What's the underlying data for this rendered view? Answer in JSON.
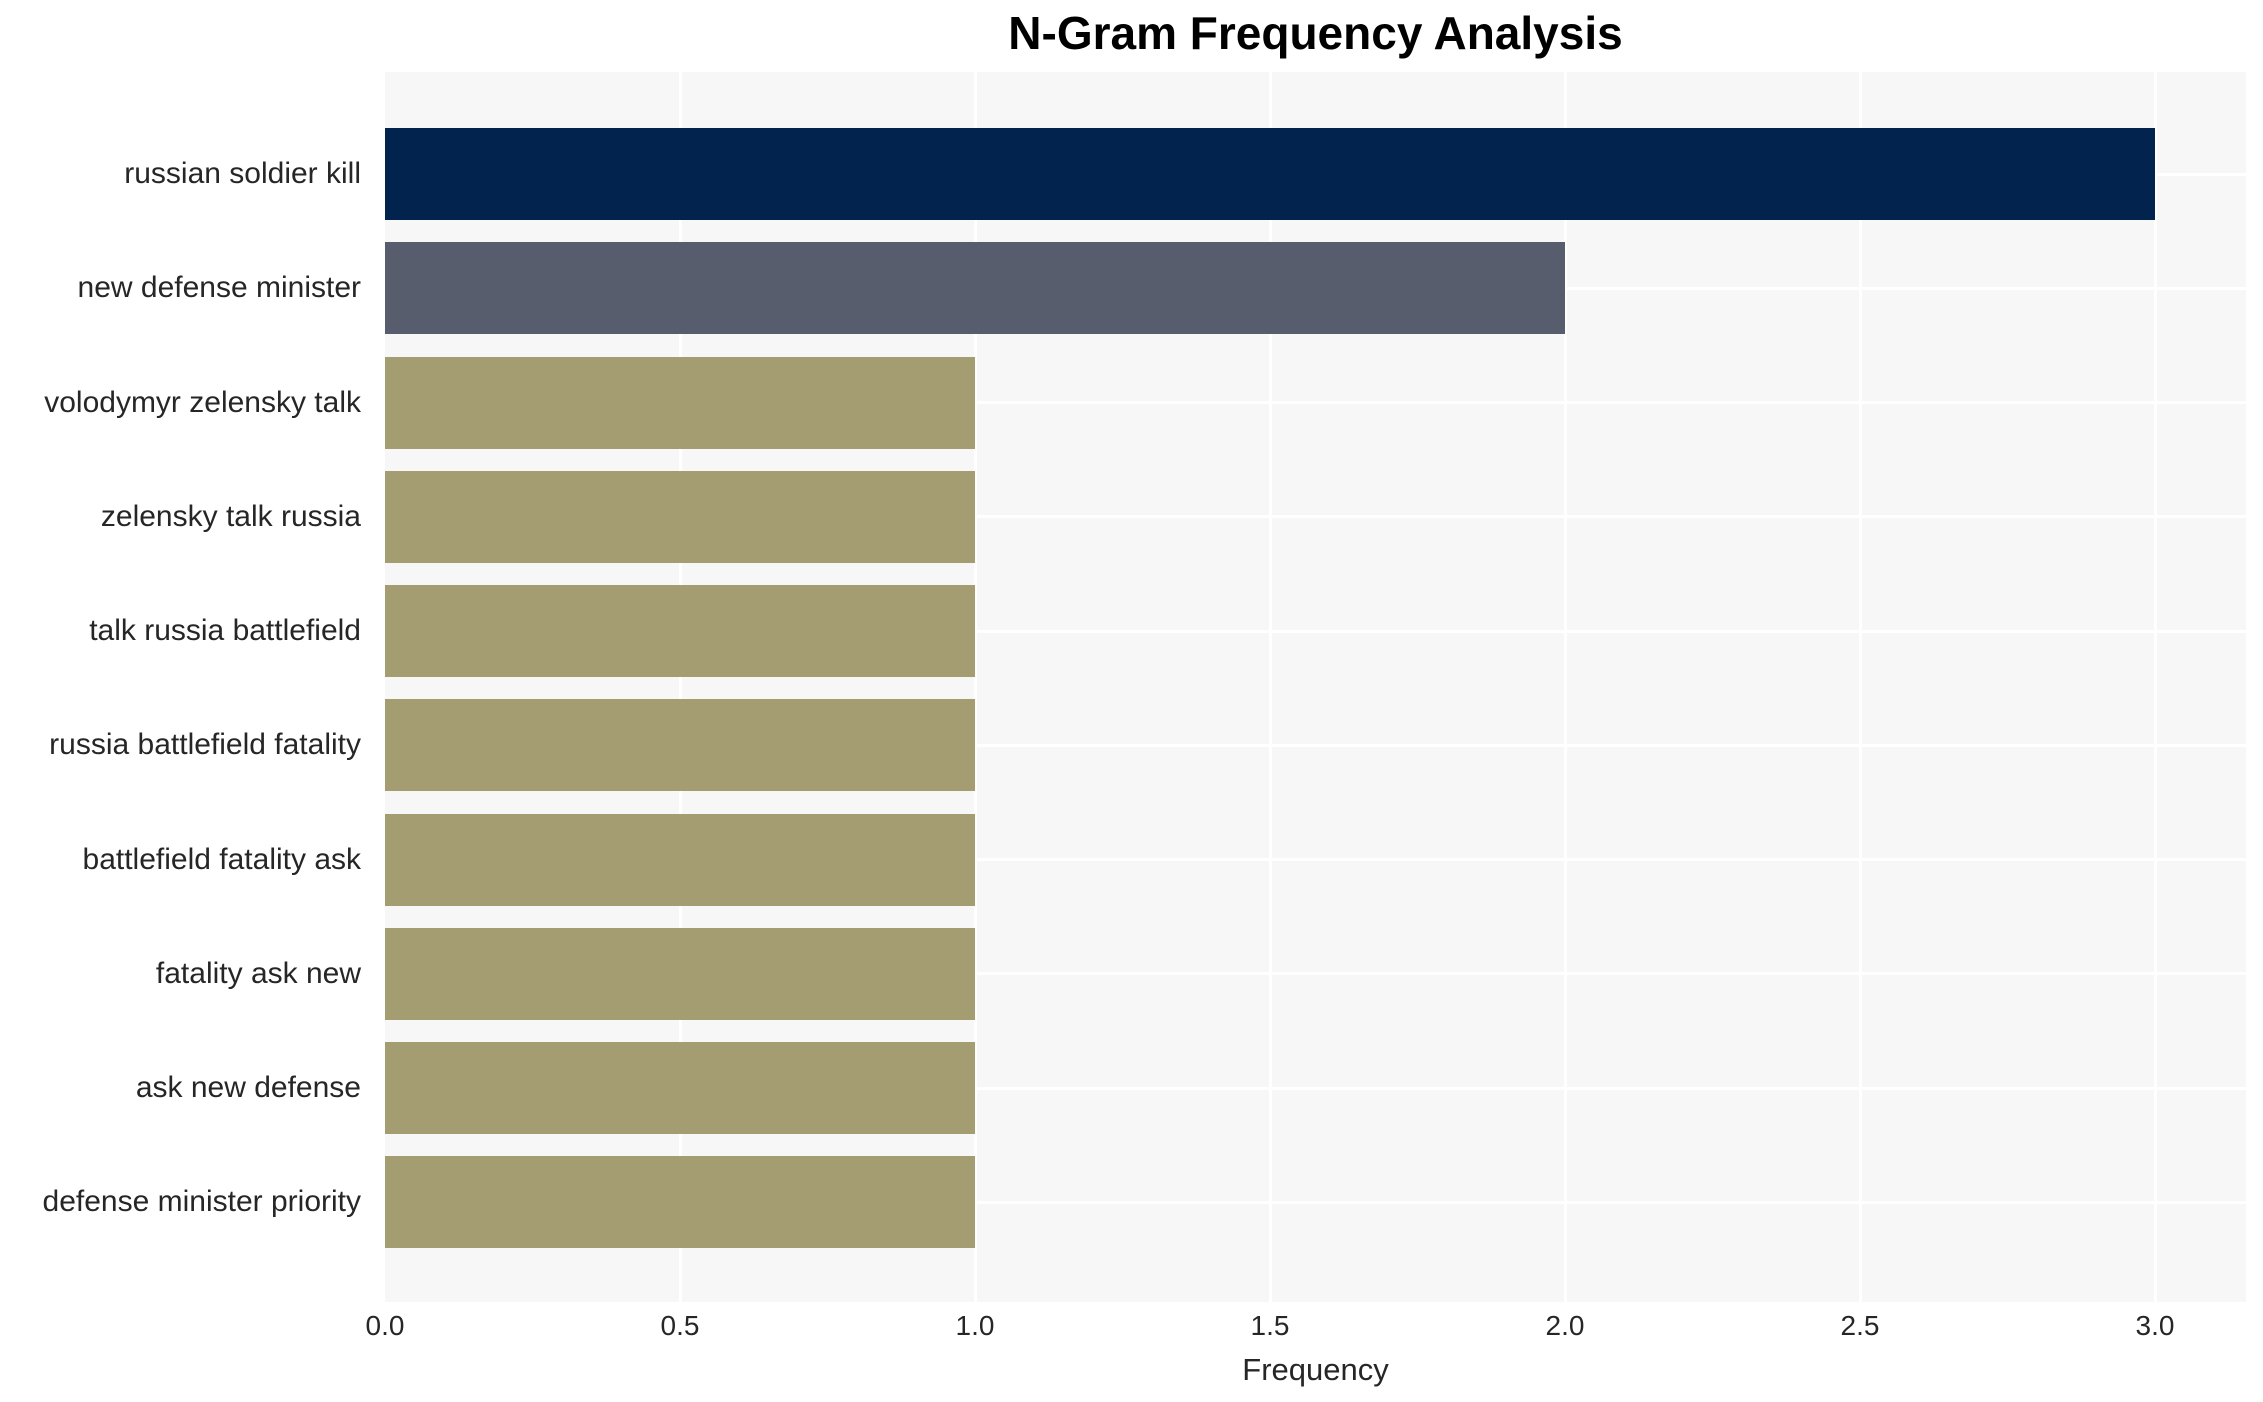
{
  "chart_data": {
    "type": "bar",
    "orientation": "horizontal",
    "title": "N-Gram Frequency Analysis",
    "categories": [
      "russian soldier kill",
      "new defense minister",
      "volodymyr zelensky talk",
      "zelensky talk russia",
      "talk russia battlefield",
      "russia battlefield fatality",
      "battlefield fatality ask",
      "fatality ask new",
      "ask new defense",
      "defense minister priority"
    ],
    "values": [
      3,
      2,
      1,
      1,
      1,
      1,
      1,
      1,
      1,
      1
    ],
    "bar_colors": [
      "#02234e",
      "#585d6d",
      "#a49d71",
      "#a49d71",
      "#a49d71",
      "#a49d71",
      "#a49d71",
      "#a49d71",
      "#a49d71",
      "#a49d71"
    ],
    "xlabel": "Frequency",
    "ylabel": "",
    "x_ticks": [
      {
        "value": 0.0,
        "label": "0.0"
      },
      {
        "value": 0.5,
        "label": "0.5"
      },
      {
        "value": 1.0,
        "label": "1.0"
      },
      {
        "value": 1.5,
        "label": "1.5"
      },
      {
        "value": 2.0,
        "label": "2.0"
      },
      {
        "value": 2.5,
        "label": "2.5"
      },
      {
        "value": 3.0,
        "label": "3.0"
      }
    ],
    "xlim": [
      0,
      3.15
    ],
    "grid": true,
    "legend": false,
    "colors": {
      "page_background": "#ffffff",
      "plot_background": "#f7f7f7",
      "gridline": "#ffffff",
      "tick_text": "#262626",
      "title_text": "#000000"
    }
  }
}
